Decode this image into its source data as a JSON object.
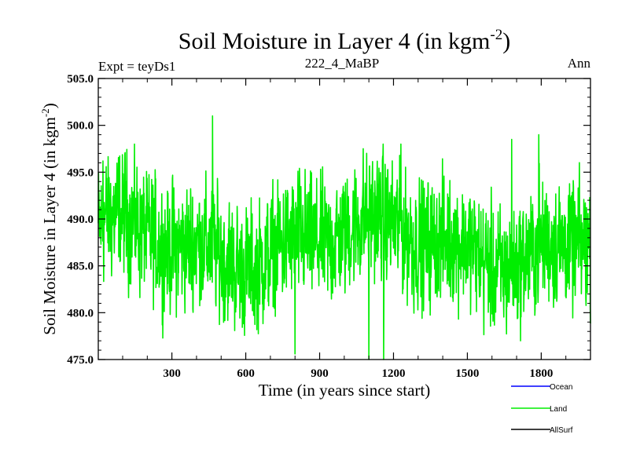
{
  "chart_data": {
    "type": "line",
    "title": "Soil Moisture in Layer 4 (in kgm",
    "title_sup": "-2",
    "title_close": ")",
    "subtitle_left": "Expt = teyDs1",
    "subtitle_center": "222_4_MaBP",
    "subtitle_right": "Ann",
    "xlabel": "Time (in years since start)",
    "ylabel": "Soil Moisture in Layer 4 (in kgm",
    "ylabel_sup": "-2",
    "ylabel_close": ")",
    "xlim": [
      1,
      2000
    ],
    "ylim": [
      475,
      505
    ],
    "x_ticks": [
      300,
      600,
      900,
      1200,
      1500,
      1800
    ],
    "x_tick_labels": [
      "300",
      "600",
      "900",
      "1200",
      "1500",
      "1800"
    ],
    "y_ticks": [
      475,
      480,
      485,
      490,
      495,
      500,
      505
    ],
    "y_tick_labels": [
      "475.0",
      "480.0",
      "485.0",
      "490.0",
      "495.0",
      "500.0",
      "505.0"
    ],
    "series": [
      {
        "name": "Land",
        "color": "#00ee00",
        "mean": 487.5,
        "approx_range": [
          475.5,
          501
        ],
        "notable_points": [
          [
            20,
            496.2
          ],
          [
            465,
            501
          ],
          [
            800,
            475.6
          ],
          [
            1100,
            475
          ],
          [
            1160,
            475
          ],
          [
            1230,
            498
          ],
          [
            1680,
            498.5
          ],
          [
            1790,
            499
          ]
        ],
        "description": "noisy annual series fluctuating mostly between 478 and 497"
      }
    ],
    "legend": [
      {
        "label": "Ocean",
        "color": "#0000ff"
      },
      {
        "label": "Land",
        "color": "#00ee00"
      },
      {
        "label": "AllSurf",
        "color": "#000000"
      }
    ],
    "legend_position": "bottom-right",
    "grid": false
  }
}
